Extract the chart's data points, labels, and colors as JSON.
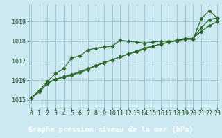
{
  "title": "Graphe pression niveau de la mer (hPa)",
  "background_color": "#cce8f0",
  "plot_bg_color": "#cce8f0",
  "grid_color": "#99bbcc",
  "line_color": "#2d6a2d",
  "marker_color": "#2d6a2d",
  "title_bg_color": "#2d6a2d",
  "title_text_color": "#ffffff",
  "x_ticks": [
    0,
    1,
    2,
    3,
    4,
    5,
    6,
    7,
    8,
    9,
    10,
    11,
    12,
    13,
    14,
    15,
    16,
    17,
    18,
    19,
    20,
    21,
    22,
    23
  ],
  "y_ticks": [
    1015,
    1016,
    1017,
    1018,
    1019
  ],
  "ylim": [
    1014.6,
    1019.9
  ],
  "xlim": [
    -0.3,
    23.3
  ],
  "series1": [
    1015.1,
    1015.5,
    1015.95,
    1016.35,
    1016.6,
    1017.15,
    1017.25,
    1017.55,
    1017.65,
    1017.7,
    1017.75,
    1018.05,
    1018.0,
    1017.95,
    1017.9,
    1017.95,
    1018.0,
    1018.0,
    1018.0,
    1018.1,
    1018.1,
    1019.15,
    1019.55,
    1019.2
  ],
  "series2": [
    1015.1,
    1015.4,
    1015.85,
    1016.05,
    1016.15,
    1016.25,
    1016.4,
    1016.55,
    1016.75,
    1016.9,
    1017.05,
    1017.2,
    1017.35,
    1017.45,
    1017.6,
    1017.75,
    1017.85,
    1017.95,
    1018.05,
    1018.1,
    1018.15,
    1018.7,
    1019.1,
    1019.2
  ],
  "series3": [
    1015.1,
    1015.45,
    1015.85,
    1016.05,
    1016.2,
    1016.3,
    1016.45,
    1016.6,
    1016.75,
    1016.9,
    1017.05,
    1017.2,
    1017.35,
    1017.5,
    1017.65,
    1017.75,
    1017.85,
    1017.95,
    1018.05,
    1018.15,
    1018.15,
    1018.5,
    1018.8,
    1019.0
  ],
  "title_fontsize": 7.5,
  "tick_fontsize": 6.0,
  "font_color": "#1a4a1a"
}
